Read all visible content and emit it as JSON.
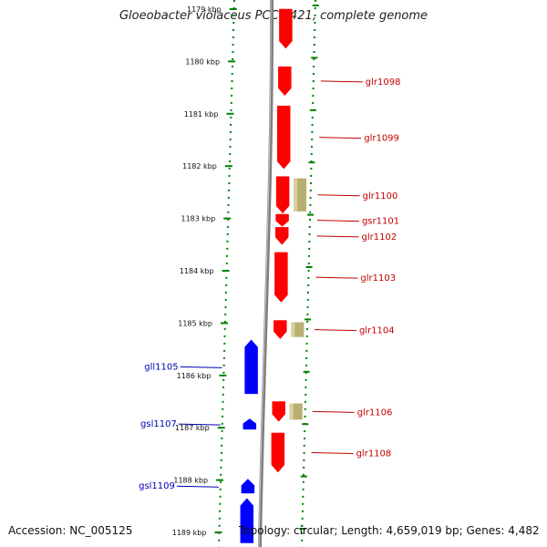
{
  "header": {
    "title": "Gloeobacter violaceus PCC 7421, complete genome"
  },
  "footer": {
    "accession": "Accession: NC_005125",
    "info": "Topology: circular; Length: 4,659,019 bp; Genes: 4,482"
  },
  "colors": {
    "plus_gene": "#ff0000",
    "minus_gene": "#0000ff",
    "other_feature": "#b8b070",
    "scale_ticks": "#008000",
    "right_label": "#c00000",
    "left_label": "#0000b0"
  },
  "scale": {
    "unit": "kbp",
    "ticks": [
      {
        "kbp": 1179,
        "label": "1179 kbp"
      },
      {
        "kbp": 1180,
        "label": "1180 kbp"
      },
      {
        "kbp": 1181,
        "label": "1181 kbp"
      },
      {
        "kbp": 1182,
        "label": "1182 kbp"
      },
      {
        "kbp": 1183,
        "label": "1183 kbp"
      },
      {
        "kbp": 1184,
        "label": "1184 kbp"
      },
      {
        "kbp": 1185,
        "label": "1185 kbp"
      },
      {
        "kbp": 1186,
        "label": "1186 kbp"
      },
      {
        "kbp": 1187,
        "label": "1187 kbp"
      },
      {
        "kbp": 1188,
        "label": "1188 kbp"
      },
      {
        "kbp": 1189,
        "label": "1189 kbp"
      }
    ]
  },
  "features": [
    {
      "name": "",
      "strand": "+",
      "start_kbp": 1179.0,
      "end_kbp": 1179.75,
      "type": "gene"
    },
    {
      "name": "glr1098",
      "strand": "+",
      "start_kbp": 1180.1,
      "end_kbp": 1180.65,
      "type": "gene"
    },
    {
      "name": "glr1099",
      "strand": "+",
      "start_kbp": 1180.85,
      "end_kbp": 1182.05,
      "type": "gene"
    },
    {
      "name": "",
      "strand": "0",
      "start_kbp": 1182.2,
      "end_kbp": 1182.9,
      "type": "other"
    },
    {
      "name": "glr1100",
      "strand": "+",
      "start_kbp": 1182.2,
      "end_kbp": 1182.9,
      "type": "gene"
    },
    {
      "name": "gsr1101",
      "strand": "+",
      "start_kbp": 1182.92,
      "end_kbp": 1183.15,
      "type": "gene"
    },
    {
      "name": "glr1102",
      "strand": "+",
      "start_kbp": 1183.17,
      "end_kbp": 1183.5,
      "type": "gene"
    },
    {
      "name": "glr1103",
      "strand": "+",
      "start_kbp": 1183.65,
      "end_kbp": 1184.6,
      "type": "gene"
    },
    {
      "name": "",
      "strand": "0",
      "start_kbp": 1184.95,
      "end_kbp": 1185.3,
      "type": "other"
    },
    {
      "name": "glr1104",
      "strand": "+",
      "start_kbp": 1184.95,
      "end_kbp": 1185.3,
      "type": "gene"
    },
    {
      "name": "gll1105",
      "strand": "-",
      "start_kbp": 1185.32,
      "end_kbp": 1186.35,
      "type": "gene"
    },
    {
      "name": "",
      "strand": "0",
      "start_kbp": 1186.5,
      "end_kbp": 1186.88,
      "type": "other"
    },
    {
      "name": "glr1106",
      "strand": "+",
      "start_kbp": 1186.5,
      "end_kbp": 1186.88,
      "type": "gene"
    },
    {
      "name": "gsl1107",
      "strand": "-",
      "start_kbp": 1186.83,
      "end_kbp": 1187.03,
      "type": "gene"
    },
    {
      "name": "glr1108",
      "strand": "+",
      "start_kbp": 1187.1,
      "end_kbp": 1187.85,
      "type": "gene"
    },
    {
      "name": "gsl1109",
      "strand": "-",
      "start_kbp": 1187.98,
      "end_kbp": 1188.25,
      "type": "gene"
    },
    {
      "name": "",
      "strand": "-",
      "start_kbp": 1188.35,
      "end_kbp": 1189.2,
      "type": "gene"
    }
  ]
}
